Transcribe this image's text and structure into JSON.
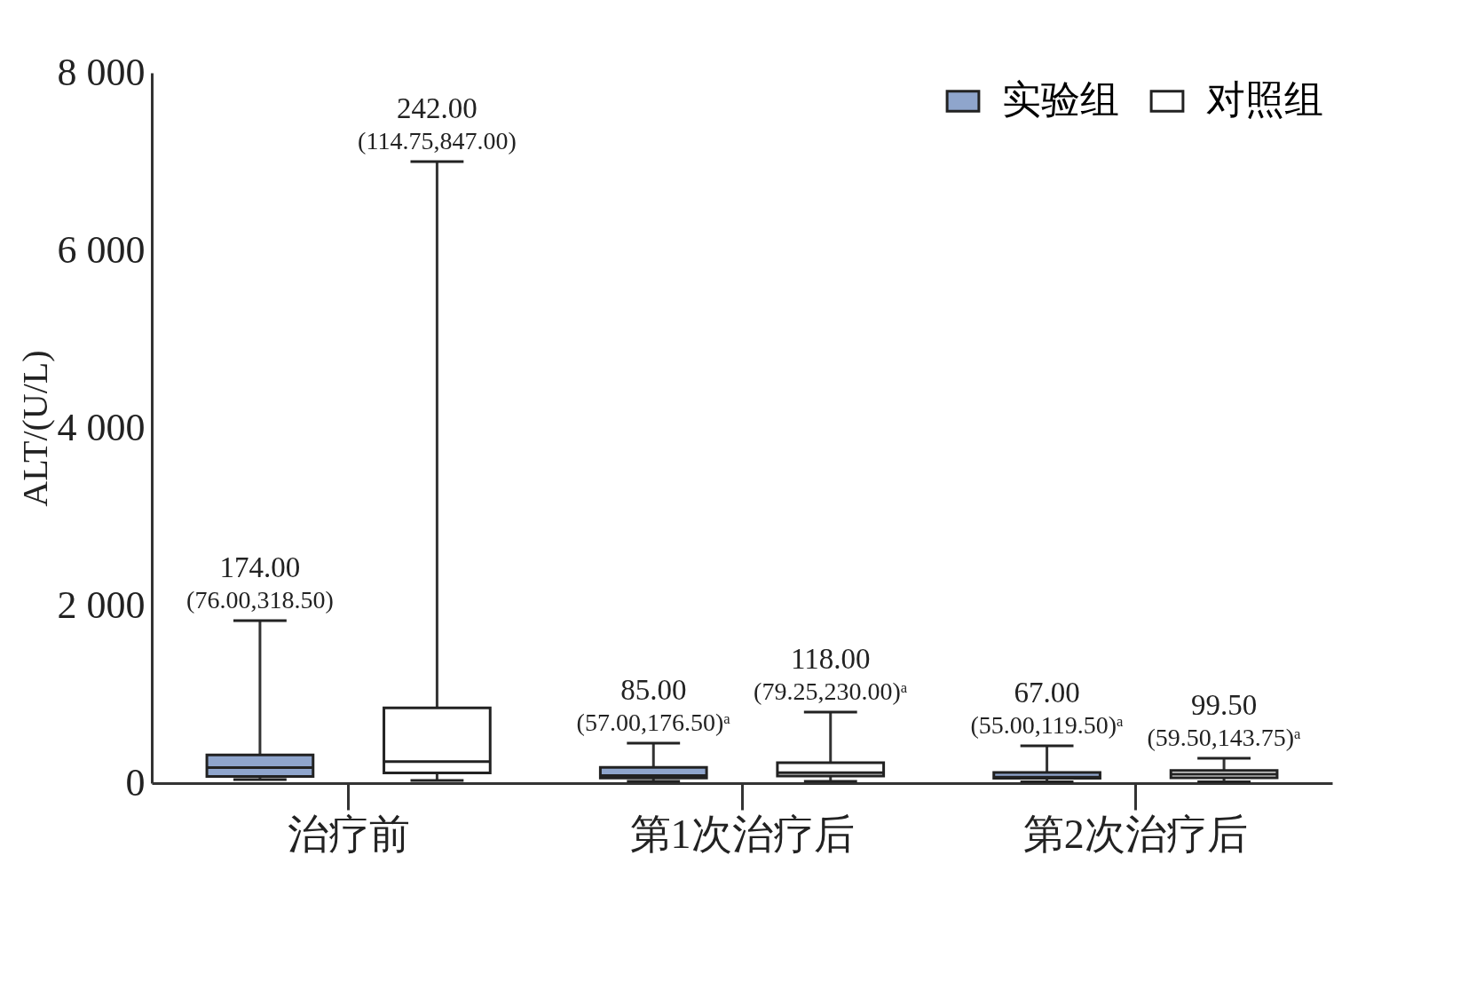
{
  "chart_data": {
    "type": "box",
    "ylabel": "ALT/(U/L)",
    "categories": [
      "治疗前",
      "第1次治疗后",
      "第2次治疗后"
    ],
    "ylim": [
      0,
      8000
    ],
    "yticks": [
      0,
      {
        "value": 2000,
        "label": "2 000"
      },
      {
        "value": 4000,
        "label": "4 000"
      },
      {
        "value": 6000,
        "label": "6 000"
      },
      {
        "value": 8000,
        "label": "8 000"
      }
    ],
    "grid": false,
    "legend": "top right",
    "series": [
      {
        "name": "实验组",
        "color": "#8fa5cc",
        "boxes": [
          {
            "low": 40,
            "q1": 76.0,
            "median": 174.0,
            "q3": 318.5,
            "high": 1830
          },
          {
            "low": 20,
            "q1": 57.0,
            "median": 85.0,
            "q3": 176.5,
            "high": 450
          },
          {
            "low": 15,
            "q1": 55.0,
            "median": 67.0,
            "q3": 119.5,
            "high": 420
          }
        ],
        "value_labels": [
          "174.00\n(76.00,318.50)",
          "85.00\n(57.00,176.50)ᵃ",
          "67.00\n(55.00,119.50)ᵃ"
        ]
      },
      {
        "name": "对照组",
        "color": "#ffffff",
        "boxes": [
          {
            "low": 30,
            "q1": 114.75,
            "median": 242.0,
            "q3": 847.0,
            "high": 7000
          },
          {
            "low": 20,
            "q1": 79.25,
            "median": 118.0,
            "q3": 230.0,
            "high": 800
          },
          {
            "low": 15,
            "q1": 59.5,
            "median": 99.5,
            "q3": 143.75,
            "high": 280
          }
        ],
        "value_labels": [
          "242.00\n(114.75,847.00)",
          "118.00\n(79.25,230.00)ᵃ",
          "99.50\n(59.50,143.75)ᵃ"
        ]
      }
    ]
  }
}
